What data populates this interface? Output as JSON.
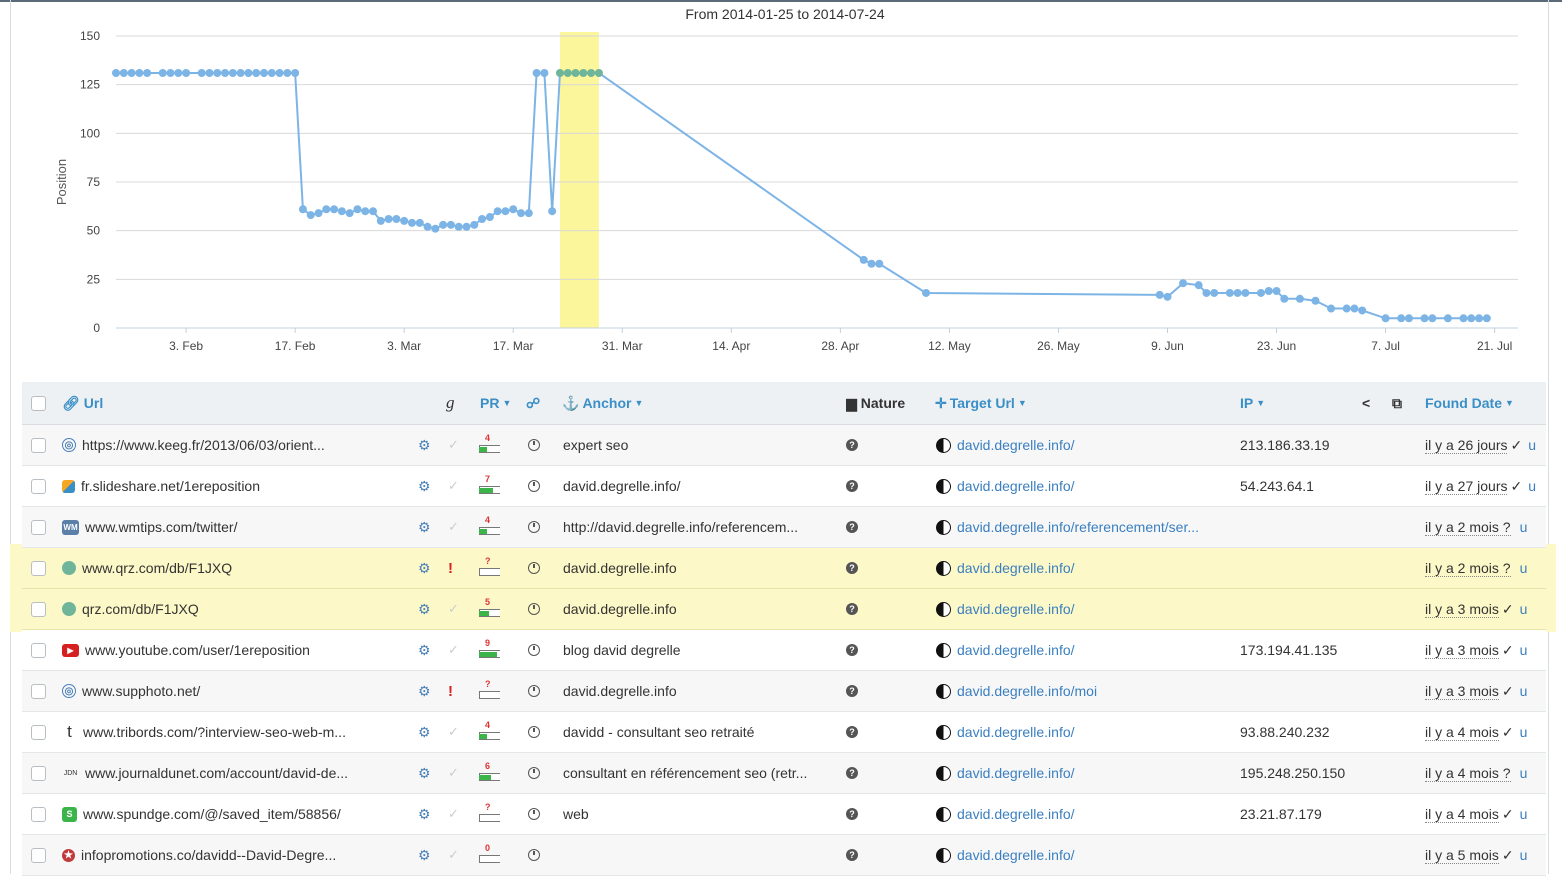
{
  "chart_data": {
    "type": "line",
    "title": "From 2014-01-25 to 2014-07-24",
    "ylabel": "Position",
    "xlabel": "",
    "ylim": [
      0,
      150
    ],
    "yticks": [
      0,
      25,
      50,
      75,
      100,
      125,
      150
    ],
    "x_tick_labels": [
      "3. Feb",
      "17. Feb",
      "3. Mar",
      "17. Mar",
      "31. Mar",
      "14. Apr",
      "28. Apr",
      "12. May",
      "26. May",
      "9. Jun",
      "23. Jun",
      "7. Jul",
      "21. Jul"
    ],
    "grid": true,
    "series_color": "#7db4e6",
    "highlight_band": {
      "from": "2014-03-23",
      "to": "2014-03-28",
      "color": "#fbf59b"
    },
    "series": [
      {
        "x": [
          "2014-01-25",
          "2014-01-26",
          "2014-01-27",
          "2014-01-28",
          "2014-01-29",
          "2014-01-31",
          "2014-02-01",
          "2014-02-02",
          "2014-02-03",
          "2014-02-05",
          "2014-02-06",
          "2014-02-07",
          "2014-02-08",
          "2014-02-09",
          "2014-02-10",
          "2014-02-11",
          "2014-02-12",
          "2014-02-13",
          "2014-02-14",
          "2014-02-15",
          "2014-02-16",
          "2014-02-17",
          "2014-02-18",
          "2014-02-19",
          "2014-02-20",
          "2014-02-21",
          "2014-02-22",
          "2014-02-23",
          "2014-02-24",
          "2014-02-25",
          "2014-02-26",
          "2014-02-27",
          "2014-02-28",
          "2014-03-01",
          "2014-03-02",
          "2014-03-03",
          "2014-03-04",
          "2014-03-05",
          "2014-03-06",
          "2014-03-07",
          "2014-03-08",
          "2014-03-09",
          "2014-03-10",
          "2014-03-11",
          "2014-03-12",
          "2014-03-13",
          "2014-03-14",
          "2014-03-15",
          "2014-03-16",
          "2014-03-17",
          "2014-03-18",
          "2014-03-19",
          "2014-03-20",
          "2014-03-21",
          "2014-03-22",
          "2014-03-23",
          "2014-03-24",
          "2014-03-25",
          "2014-03-26",
          "2014-03-27",
          "2014-03-28",
          "2014-05-01",
          "2014-05-02",
          "2014-05-03",
          "2014-05-09",
          "2014-06-08",
          "2014-06-09",
          "2014-06-11",
          "2014-06-13",
          "2014-06-14",
          "2014-06-15",
          "2014-06-17",
          "2014-06-18",
          "2014-06-19",
          "2014-06-21",
          "2014-06-22",
          "2014-06-23",
          "2014-06-24",
          "2014-06-26",
          "2014-06-28",
          "2014-06-30",
          "2014-07-02",
          "2014-07-03",
          "2014-07-04",
          "2014-07-07",
          "2014-07-09",
          "2014-07-10",
          "2014-07-12",
          "2014-07-13",
          "2014-07-15",
          "2014-07-17",
          "2014-07-18",
          "2014-07-19",
          "2014-07-20"
        ],
        "values": [
          131,
          131,
          131,
          131,
          131,
          131,
          131,
          131,
          131,
          131,
          131,
          131,
          131,
          131,
          131,
          131,
          131,
          131,
          131,
          131,
          131,
          131,
          61,
          58,
          59,
          61,
          61,
          60,
          59,
          61,
          60,
          60,
          55,
          56,
          56,
          55,
          54,
          54,
          52,
          51,
          53,
          53,
          52,
          52,
          53,
          56,
          57,
          60,
          60,
          61,
          59,
          59,
          131,
          131,
          60,
          131,
          131,
          131,
          131,
          131,
          131,
          35,
          33,
          33,
          18,
          17,
          16,
          23,
          22,
          18,
          18,
          18,
          18,
          18,
          18,
          19,
          19,
          15,
          15,
          14,
          10,
          10,
          10,
          9,
          5,
          5,
          5,
          5,
          5,
          5,
          5,
          5,
          5,
          5
        ]
      }
    ]
  },
  "table": {
    "headers": {
      "url": "Url",
      "google": "g",
      "pr": "PR",
      "anchor": "Anchor",
      "nature": "Nature",
      "target_url": "Target Url",
      "ip": "IP",
      "found_date": "Found Date"
    },
    "rows": [
      {
        "favicon": "globe",
        "url": "https://www.keeg.fr/2013/06/03/orient...",
        "warn": false,
        "pr": "4",
        "pr_fill": 0.4,
        "anchor": "expert seo",
        "target": "david.degrelle.info/",
        "ip": "213.186.33.19",
        "date": "il y a 26 jours",
        "date_check": "✓",
        "suffix": "u",
        "highlight": false
      },
      {
        "favicon": "slideshare",
        "url": "fr.slideshare.net/1ereposition",
        "warn": false,
        "pr": "7",
        "pr_fill": 0.7,
        "anchor": "david.degrelle.info/",
        "target": "david.degrelle.info/",
        "ip": "54.243.64.1",
        "date": "il y a 27 jours",
        "date_check": "✓",
        "suffix": "u",
        "highlight": false
      },
      {
        "favicon": "wm",
        "url": "www.wmtips.com/twitter/",
        "warn": false,
        "pr": "4",
        "pr_fill": 0.4,
        "anchor": "http://david.degrelle.info/referencem...",
        "target": "david.degrelle.info/referencement/ser...",
        "ip": "",
        "date": "il y a 2 mois ?",
        "date_check": "",
        "suffix": "u",
        "highlight": false
      },
      {
        "favicon": "green",
        "url": "www.qrz.com/db/F1JXQ",
        "warn": true,
        "pr": "?",
        "pr_fill": 0,
        "anchor": "david.degrelle.info",
        "target": "david.degrelle.info/",
        "ip": "",
        "date": "il y a 2 mois ?",
        "date_check": "",
        "suffix": "u",
        "highlight": true
      },
      {
        "favicon": "green",
        "url": "qrz.com/db/F1JXQ",
        "warn": false,
        "pr": "5",
        "pr_fill": 0.5,
        "anchor": "david.degrelle.info",
        "target": "david.degrelle.info/",
        "ip": "",
        "date": "il y a 3 mois",
        "date_check": "✓",
        "suffix": "u",
        "highlight": true
      },
      {
        "favicon": "youtube",
        "url": "www.youtube.com/user/1ereposition",
        "warn": false,
        "pr": "9",
        "pr_fill": 0.9,
        "anchor": "blog david degrelle",
        "target": "david.degrelle.info/",
        "ip": "173.194.41.135",
        "date": "il y a 3 mois",
        "date_check": "✓",
        "suffix": "u",
        "highlight": false
      },
      {
        "favicon": "globe",
        "url": "www.supphoto.net/",
        "warn": true,
        "pr": "?",
        "pr_fill": 0,
        "anchor": "david.degrelle.info",
        "target": "david.degrelle.info/moi",
        "ip": "",
        "date": "il y a 3 mois",
        "date_check": "✓",
        "suffix": "u",
        "highlight": false
      },
      {
        "favicon": "tumblr",
        "url": "www.tribords.com/?interview-seo-web-m...",
        "warn": false,
        "pr": "4",
        "pr_fill": 0.4,
        "anchor": "davidd - consultant seo retraité",
        "target": "david.degrelle.info/",
        "ip": "93.88.240.232",
        "date": "il y a 4 mois",
        "date_check": "✓",
        "suffix": "u",
        "highlight": false
      },
      {
        "favicon": "jdn",
        "url": "www.journaldunet.com/account/david-de...",
        "warn": false,
        "pr": "6",
        "pr_fill": 0.6,
        "anchor": "consultant en référencement seo (retr...",
        "target": "david.degrelle.info/",
        "ip": "195.248.250.150",
        "date": "il y a 4 mois ?",
        "date_check": "",
        "suffix": "u",
        "highlight": false
      },
      {
        "favicon": "spundge",
        "url": "www.spundge.com/@/saved_item/58856/",
        "warn": false,
        "pr": "?",
        "pr_fill": 0,
        "anchor": "web",
        "target": "david.degrelle.info/",
        "ip": "23.21.87.179",
        "date": "il y a 4 mois",
        "date_check": "✓",
        "suffix": "u",
        "highlight": false
      },
      {
        "favicon": "infopromo",
        "url": "infopromotions.co/davidd--David-Degre...",
        "warn": false,
        "pr": "0",
        "pr_fill": 0,
        "anchor": "",
        "target": "david.degrelle.info/",
        "ip": "",
        "date": "il y a 5 mois",
        "date_check": "✓",
        "suffix": "u",
        "highlight": false
      }
    ]
  }
}
